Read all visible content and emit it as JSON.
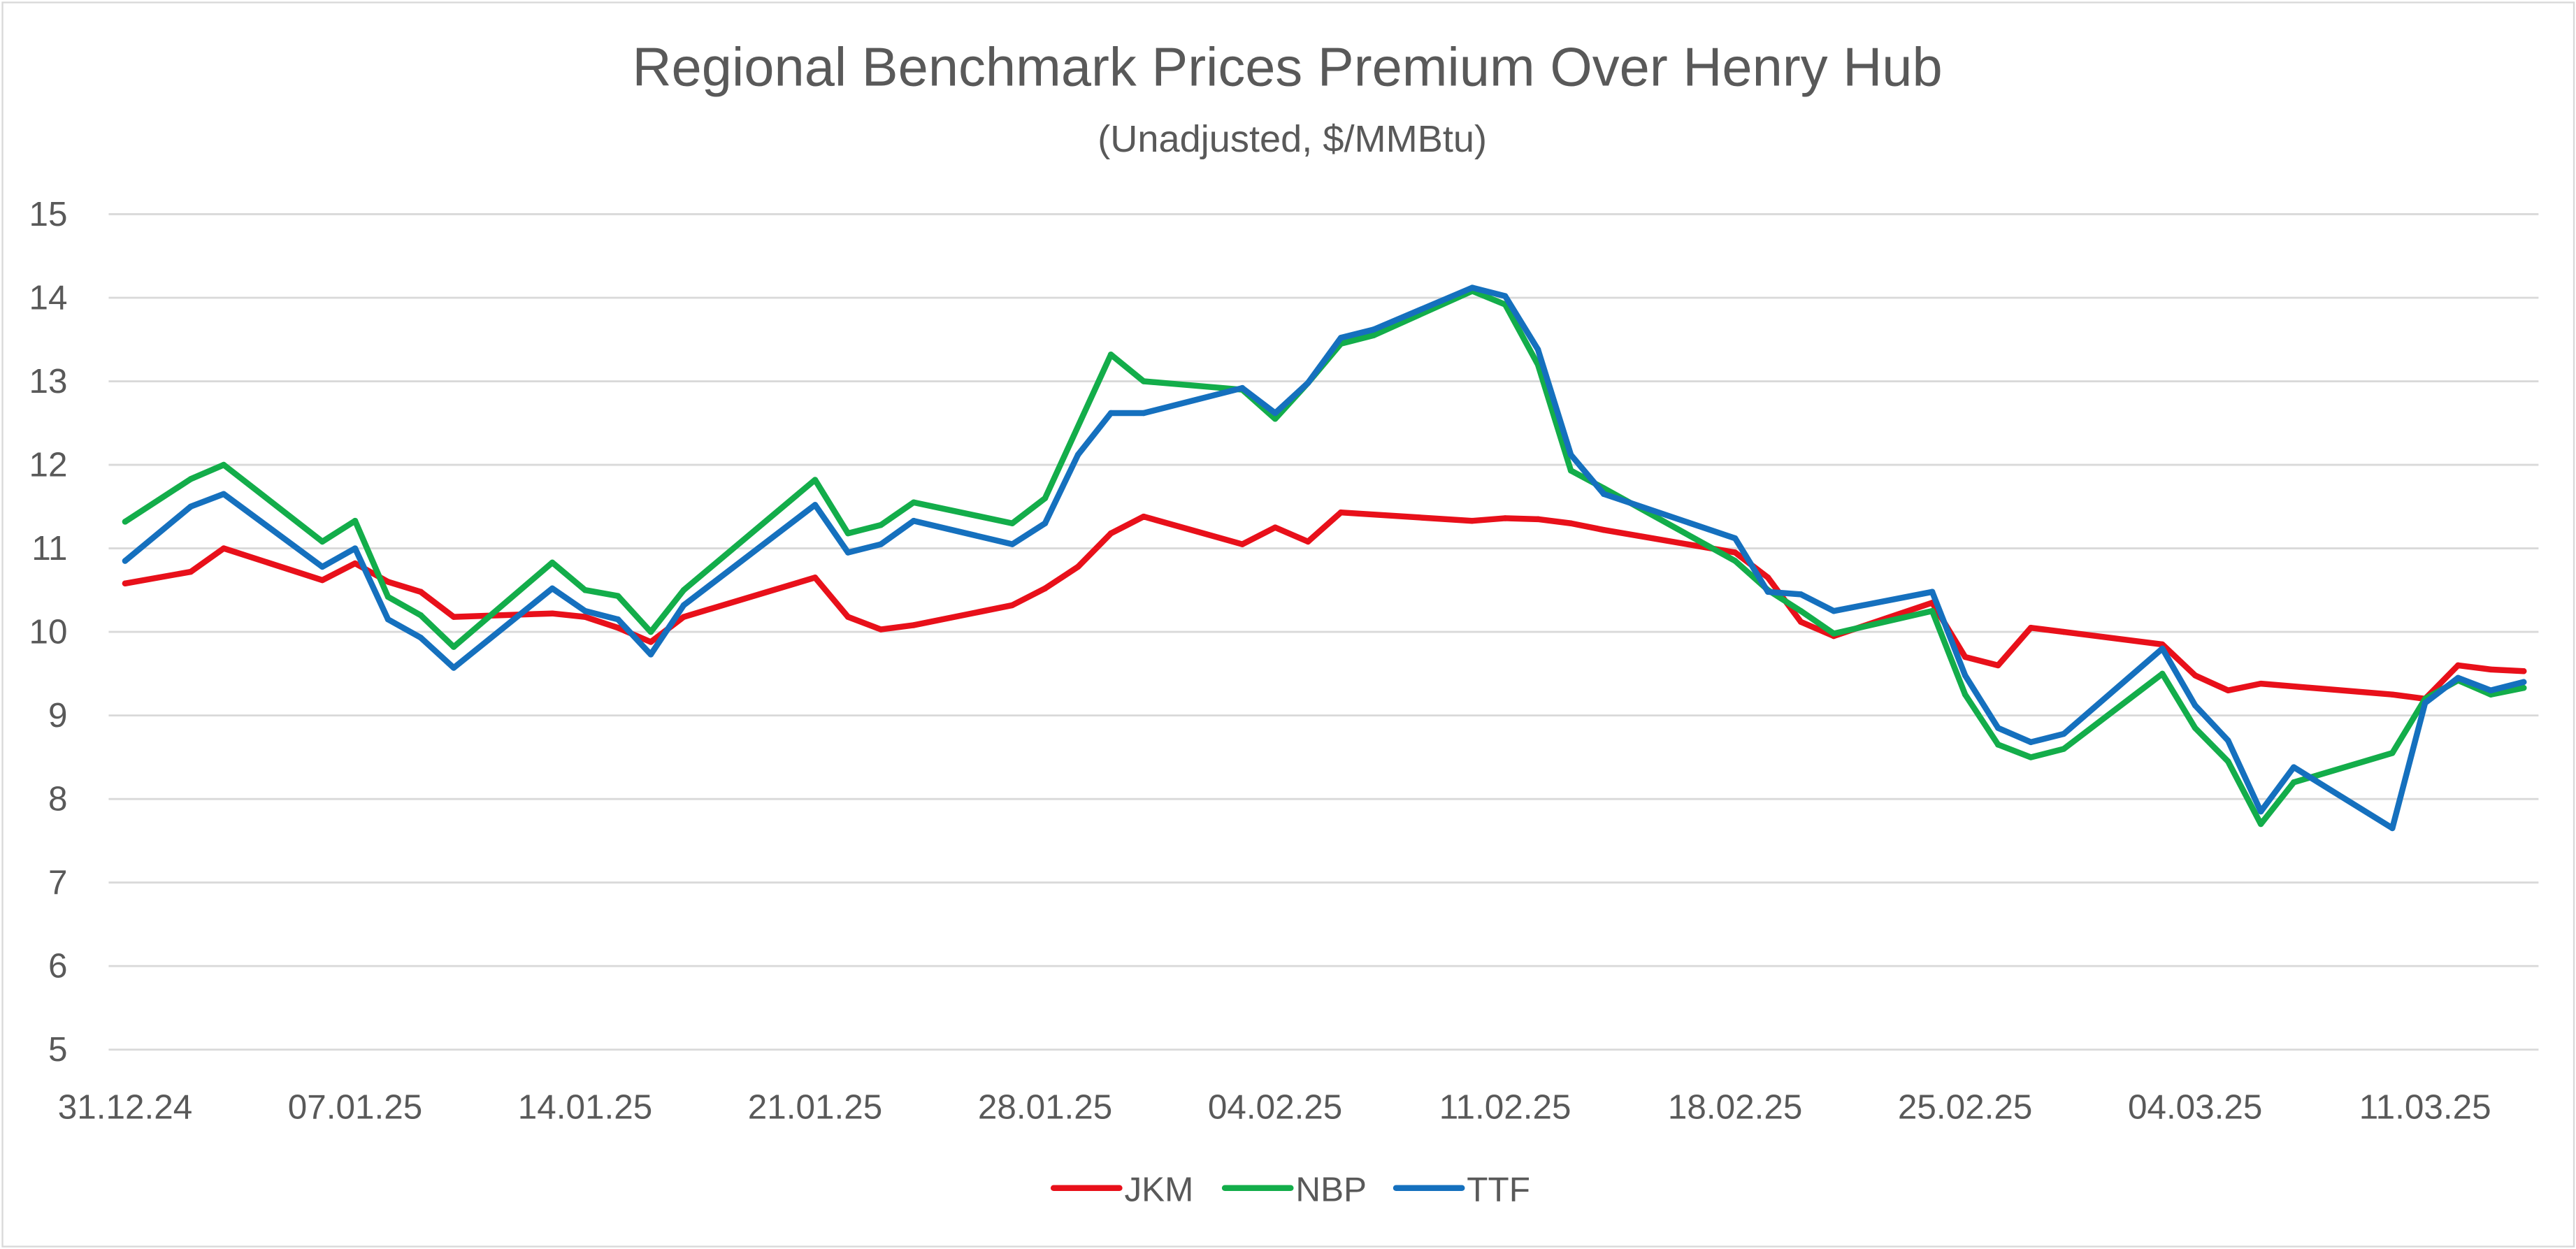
{
  "chart_data": {
    "type": "line",
    "title": "Regional Benchmark Prices Premium Over Henry Hub",
    "subtitle": "(Unadjusted, $/MMBtu)",
    "ylim": [
      5,
      15
    ],
    "y_ticks": [
      "5",
      "6",
      "7",
      "8",
      "9",
      "10",
      "11",
      "12",
      "13",
      "14",
      "15"
    ],
    "x_range": [
      "2024-12-31",
      "2025-03-14"
    ],
    "x_tick_labels": [
      {
        "date": "2024-12-31",
        "label": "31.12.24"
      },
      {
        "date": "2025-01-07",
        "label": "07.01.25"
      },
      {
        "date": "2025-01-14",
        "label": "14.01.25"
      },
      {
        "date": "2025-01-21",
        "label": "21.01.25"
      },
      {
        "date": "2025-01-28",
        "label": "28.01.25"
      },
      {
        "date": "2025-02-04",
        "label": "04.02.25"
      },
      {
        "date": "2025-02-11",
        "label": "11.02.25"
      },
      {
        "date": "2025-02-18",
        "label": "18.02.25"
      },
      {
        "date": "2025-02-25",
        "label": "25.02.25"
      },
      {
        "date": "2025-03-04",
        "label": "04.03.25"
      },
      {
        "date": "2025-03-11",
        "label": "11.03.25"
      }
    ],
    "grid": true,
    "legend_position": "bottom",
    "series": [
      {
        "name": "JKM",
        "color": "#e8101a",
        "points": [
          [
            "2024-12-31",
            10.58
          ],
          [
            "2025-01-02",
            10.72
          ],
          [
            "2025-01-03",
            11.0
          ],
          [
            "2025-01-06",
            10.62
          ],
          [
            "2025-01-07",
            10.82
          ],
          [
            "2025-01-08",
            10.6
          ],
          [
            "2025-01-09",
            10.48
          ],
          [
            "2025-01-10",
            10.18
          ],
          [
            "2025-01-13",
            10.22
          ],
          [
            "2025-01-14",
            10.18
          ],
          [
            "2025-01-15",
            10.05
          ],
          [
            "2025-01-16",
            9.88
          ],
          [
            "2025-01-17",
            10.18
          ],
          [
            "2025-01-21",
            10.65
          ],
          [
            "2025-01-22",
            10.18
          ],
          [
            "2025-01-23",
            10.03
          ],
          [
            "2025-01-24",
            10.08
          ],
          [
            "2025-01-27",
            10.32
          ],
          [
            "2025-01-28",
            10.52
          ],
          [
            "2025-01-29",
            10.78
          ],
          [
            "2025-01-30",
            11.18
          ],
          [
            "2025-01-31",
            11.38
          ],
          [
            "2025-02-03",
            11.05
          ],
          [
            "2025-02-04",
            11.25
          ],
          [
            "2025-02-05",
            11.08
          ],
          [
            "2025-02-06",
            11.43
          ],
          [
            "2025-02-10",
            11.33
          ],
          [
            "2025-02-11",
            11.36
          ],
          [
            "2025-02-12",
            11.35
          ],
          [
            "2025-02-13",
            11.3
          ],
          [
            "2025-02-14",
            11.22
          ],
          [
            "2025-02-18",
            10.95
          ],
          [
            "2025-02-19",
            10.65
          ],
          [
            "2025-02-20",
            10.12
          ],
          [
            "2025-02-21",
            9.95
          ],
          [
            "2025-02-24",
            10.35
          ],
          [
            "2025-02-25",
            9.7
          ],
          [
            "2025-02-26",
            9.6
          ],
          [
            "2025-02-27",
            10.05
          ],
          [
            "2025-02-28",
            10.0
          ],
          [
            "2025-03-03",
            9.85
          ],
          [
            "2025-03-04",
            9.48
          ],
          [
            "2025-03-05",
            9.3
          ],
          [
            "2025-03-06",
            9.38
          ],
          [
            "2025-03-10",
            9.25
          ],
          [
            "2025-03-11",
            9.2
          ],
          [
            "2025-03-12",
            9.6
          ],
          [
            "2025-03-13",
            9.55
          ],
          [
            "2025-03-14",
            9.53
          ]
        ]
      },
      {
        "name": "NBP",
        "color": "#13ad4a",
        "points": [
          [
            "2024-12-31",
            11.32
          ],
          [
            "2025-01-02",
            11.83
          ],
          [
            "2025-01-03",
            12.0
          ],
          [
            "2025-01-06",
            11.08
          ],
          [
            "2025-01-07",
            11.33
          ],
          [
            "2025-01-08",
            10.42
          ],
          [
            "2025-01-09",
            10.2
          ],
          [
            "2025-01-10",
            9.82
          ],
          [
            "2025-01-13",
            10.83
          ],
          [
            "2025-01-14",
            10.5
          ],
          [
            "2025-01-15",
            10.43
          ],
          [
            "2025-01-16",
            10.0
          ],
          [
            "2025-01-17",
            10.5
          ],
          [
            "2025-01-21",
            11.82
          ],
          [
            "2025-01-22",
            11.18
          ],
          [
            "2025-01-23",
            11.28
          ],
          [
            "2025-01-24",
            11.55
          ],
          [
            "2025-01-27",
            11.3
          ],
          [
            "2025-01-28",
            11.6
          ],
          [
            "2025-01-30",
            13.32
          ],
          [
            "2025-01-31",
            13.0
          ],
          [
            "2025-02-03",
            12.9
          ],
          [
            "2025-02-04",
            12.55
          ],
          [
            "2025-02-05",
            12.98
          ],
          [
            "2025-02-06",
            13.45
          ],
          [
            "2025-02-07",
            13.55
          ],
          [
            "2025-02-10",
            14.08
          ],
          [
            "2025-02-11",
            13.92
          ],
          [
            "2025-02-12",
            13.2
          ],
          [
            "2025-02-13",
            11.93
          ],
          [
            "2025-02-14",
            11.72
          ],
          [
            "2025-02-18",
            10.85
          ],
          [
            "2025-02-19",
            10.5
          ],
          [
            "2025-02-20",
            10.25
          ],
          [
            "2025-02-21",
            9.98
          ],
          [
            "2025-02-24",
            10.25
          ],
          [
            "2025-02-25",
            9.25
          ],
          [
            "2025-02-26",
            8.65
          ],
          [
            "2025-02-27",
            8.5
          ],
          [
            "2025-02-28",
            8.6
          ],
          [
            "2025-03-03",
            9.5
          ],
          [
            "2025-03-04",
            8.85
          ],
          [
            "2025-03-05",
            8.45
          ],
          [
            "2025-03-06",
            7.7
          ],
          [
            "2025-03-07",
            8.2
          ],
          [
            "2025-03-10",
            8.55
          ],
          [
            "2025-03-11",
            9.2
          ],
          [
            "2025-03-12",
            9.42
          ],
          [
            "2025-03-13",
            9.25
          ],
          [
            "2025-03-14",
            9.33
          ]
        ]
      },
      {
        "name": "TTF",
        "color": "#1570be",
        "points": [
          [
            "2024-12-31",
            10.85
          ],
          [
            "2025-01-02",
            11.5
          ],
          [
            "2025-01-03",
            11.65
          ],
          [
            "2025-01-06",
            10.78
          ],
          [
            "2025-01-07",
            11.0
          ],
          [
            "2025-01-08",
            10.15
          ],
          [
            "2025-01-09",
            9.93
          ],
          [
            "2025-01-10",
            9.57
          ],
          [
            "2025-01-13",
            10.52
          ],
          [
            "2025-01-14",
            10.25
          ],
          [
            "2025-01-15",
            10.15
          ],
          [
            "2025-01-16",
            9.73
          ],
          [
            "2025-01-17",
            10.32
          ],
          [
            "2025-01-21",
            11.52
          ],
          [
            "2025-01-22",
            10.95
          ],
          [
            "2025-01-23",
            11.05
          ],
          [
            "2025-01-24",
            11.33
          ],
          [
            "2025-01-27",
            11.05
          ],
          [
            "2025-01-28",
            11.3
          ],
          [
            "2025-01-29",
            12.12
          ],
          [
            "2025-01-30",
            12.62
          ],
          [
            "2025-01-31",
            12.62
          ],
          [
            "2025-02-03",
            12.92
          ],
          [
            "2025-02-04",
            12.62
          ],
          [
            "2025-02-05",
            12.98
          ],
          [
            "2025-02-06",
            13.52
          ],
          [
            "2025-02-07",
            13.62
          ],
          [
            "2025-02-10",
            14.12
          ],
          [
            "2025-02-11",
            14.02
          ],
          [
            "2025-02-12",
            13.38
          ],
          [
            "2025-02-13",
            12.12
          ],
          [
            "2025-02-14",
            11.65
          ],
          [
            "2025-02-18",
            11.12
          ],
          [
            "2025-02-19",
            10.48
          ],
          [
            "2025-02-20",
            10.45
          ],
          [
            "2025-02-21",
            10.25
          ],
          [
            "2025-02-24",
            10.48
          ],
          [
            "2025-02-25",
            9.48
          ],
          [
            "2025-02-26",
            8.85
          ],
          [
            "2025-02-27",
            8.68
          ],
          [
            "2025-02-28",
            8.78
          ],
          [
            "2025-03-03",
            9.8
          ],
          [
            "2025-03-04",
            9.12
          ],
          [
            "2025-03-05",
            8.7
          ],
          [
            "2025-03-06",
            7.85
          ],
          [
            "2025-03-07",
            8.38
          ],
          [
            "2025-03-10",
            7.65
          ],
          [
            "2025-03-11",
            9.15
          ],
          [
            "2025-03-12",
            9.45
          ],
          [
            "2025-03-13",
            9.3
          ],
          [
            "2025-03-14",
            9.4
          ]
        ]
      }
    ]
  }
}
